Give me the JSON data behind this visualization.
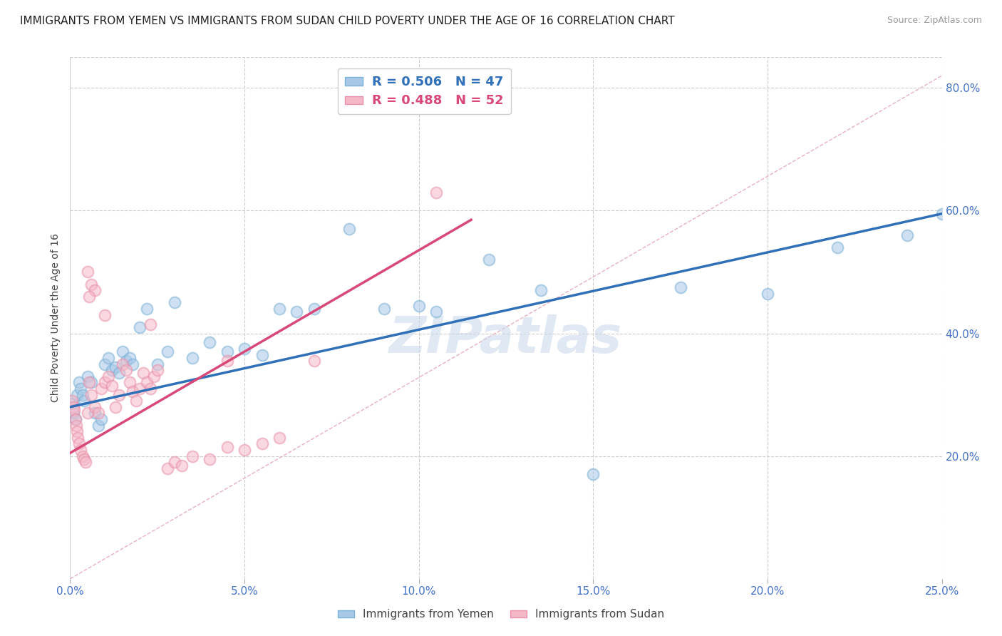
{
  "title": "IMMIGRANTS FROM YEMEN VS IMMIGRANTS FROM SUDAN CHILD POVERTY UNDER THE AGE OF 16 CORRELATION CHART",
  "source": "Source: ZipAtlas.com",
  "xlabel_ticks": [
    "0.0%",
    "5.0%",
    "10.0%",
    "15.0%",
    "20.0%",
    "25.0%"
  ],
  "xlabel_vals": [
    0.0,
    5.0,
    10.0,
    15.0,
    20.0,
    25.0
  ],
  "ylabel_ticks": [
    "20.0%",
    "40.0%",
    "60.0%",
    "80.0%"
  ],
  "ylabel_vals": [
    20.0,
    40.0,
    60.0,
    80.0
  ],
  "ylabel_label": "Child Poverty Under the Age of 16",
  "xlim": [
    0.0,
    25.0
  ],
  "ylim": [
    0.0,
    85.0
  ],
  "yemen_r": 0.506,
  "yemen_n": 47,
  "sudan_r": 0.488,
  "sudan_n": 52,
  "watermark": "ZIPatlas",
  "scatter_yemen": [
    [
      0.05,
      28.5
    ],
    [
      0.1,
      27.0
    ],
    [
      0.15,
      26.0
    ],
    [
      0.2,
      30.0
    ],
    [
      0.25,
      32.0
    ],
    [
      0.3,
      31.0
    ],
    [
      0.35,
      30.0
    ],
    [
      0.4,
      29.0
    ],
    [
      0.5,
      33.0
    ],
    [
      0.6,
      32.0
    ],
    [
      0.7,
      27.0
    ],
    [
      0.8,
      25.0
    ],
    [
      0.9,
      26.0
    ],
    [
      1.0,
      35.0
    ],
    [
      1.1,
      36.0
    ],
    [
      1.2,
      34.0
    ],
    [
      1.3,
      34.5
    ],
    [
      1.4,
      33.5
    ],
    [
      1.5,
      37.0
    ],
    [
      1.6,
      35.5
    ],
    [
      1.7,
      36.0
    ],
    [
      1.8,
      35.0
    ],
    [
      2.0,
      41.0
    ],
    [
      2.2,
      44.0
    ],
    [
      2.5,
      35.0
    ],
    [
      2.8,
      37.0
    ],
    [
      3.0,
      45.0
    ],
    [
      3.5,
      36.0
    ],
    [
      4.0,
      38.5
    ],
    [
      4.5,
      37.0
    ],
    [
      5.0,
      37.5
    ],
    [
      5.5,
      36.5
    ],
    [
      6.0,
      44.0
    ],
    [
      6.5,
      43.5
    ],
    [
      7.0,
      44.0
    ],
    [
      8.0,
      57.0
    ],
    [
      9.0,
      44.0
    ],
    [
      10.0,
      44.5
    ],
    [
      10.5,
      43.5
    ],
    [
      12.0,
      52.0
    ],
    [
      13.5,
      47.0
    ],
    [
      15.0,
      17.0
    ],
    [
      17.5,
      47.5
    ],
    [
      20.0,
      46.5
    ],
    [
      22.0,
      54.0
    ],
    [
      24.0,
      56.0
    ],
    [
      25.0,
      59.5
    ]
  ],
  "scatter_sudan": [
    [
      0.05,
      29.0
    ],
    [
      0.1,
      28.0
    ],
    [
      0.12,
      27.5
    ],
    [
      0.15,
      26.0
    ],
    [
      0.18,
      25.0
    ],
    [
      0.2,
      24.0
    ],
    [
      0.22,
      23.0
    ],
    [
      0.25,
      22.0
    ],
    [
      0.3,
      21.0
    ],
    [
      0.35,
      20.0
    ],
    [
      0.4,
      19.5
    ],
    [
      0.45,
      19.0
    ],
    [
      0.5,
      27.0
    ],
    [
      0.55,
      32.0
    ],
    [
      0.6,
      30.0
    ],
    [
      0.7,
      28.0
    ],
    [
      0.8,
      27.0
    ],
    [
      0.9,
      31.0
    ],
    [
      1.0,
      32.0
    ],
    [
      1.1,
      33.0
    ],
    [
      1.2,
      31.5
    ],
    [
      1.3,
      28.0
    ],
    [
      1.4,
      30.0
    ],
    [
      1.5,
      35.0
    ],
    [
      1.6,
      34.0
    ],
    [
      1.7,
      32.0
    ],
    [
      1.8,
      30.5
    ],
    [
      1.9,
      29.0
    ],
    [
      2.0,
      31.0
    ],
    [
      2.1,
      33.5
    ],
    [
      2.2,
      32.0
    ],
    [
      2.3,
      31.0
    ],
    [
      2.4,
      33.0
    ],
    [
      2.5,
      34.0
    ],
    [
      2.8,
      18.0
    ],
    [
      3.0,
      19.0
    ],
    [
      3.2,
      18.5
    ],
    [
      3.5,
      20.0
    ],
    [
      4.0,
      19.5
    ],
    [
      4.5,
      21.5
    ],
    [
      5.0,
      21.0
    ],
    [
      5.5,
      22.0
    ],
    [
      6.0,
      23.0
    ],
    [
      7.0,
      35.5
    ],
    [
      0.5,
      50.0
    ],
    [
      0.6,
      48.0
    ],
    [
      0.7,
      47.0
    ],
    [
      0.55,
      46.0
    ],
    [
      1.0,
      43.0
    ],
    [
      2.3,
      41.5
    ],
    [
      4.5,
      35.5
    ],
    [
      10.5,
      63.0
    ]
  ],
  "blue_line": {
    "x0": 0.0,
    "y0": 28.0,
    "x1": 25.0,
    "y1": 59.5
  },
  "pink_line": {
    "x0": 0.0,
    "y0": 20.5,
    "x1": 11.5,
    "y1": 58.5
  },
  "diag_line_x": [
    0.0,
    25.0
  ],
  "diag_line_y": [
    0.0,
    82.0
  ],
  "dot_color_yemen": "#a8c8e8",
  "dot_edge_yemen": "#7ab0d4",
  "dot_color_sudan": "#f5b8c8",
  "dot_edge_sudan": "#e890a8",
  "line_color_yemen": "#3070b8",
  "line_color_sudan": "#d84878",
  "diag_color": "#cccccc",
  "background_color": "#ffffff",
  "grid_color": "#cccccc",
  "title_fontsize": 11,
  "axis_label_fontsize": 10,
  "tick_fontsize": 11,
  "tick_color_x": "#4472c4",
  "tick_color_y": "#4472c4",
  "watermark_color": "#c8d8ea",
  "watermark_alpha": 0.55,
  "watermark_fontsize": 52,
  "dot_size": 130,
  "dot_alpha": 0.55,
  "dot_linewidth": 1.5
}
